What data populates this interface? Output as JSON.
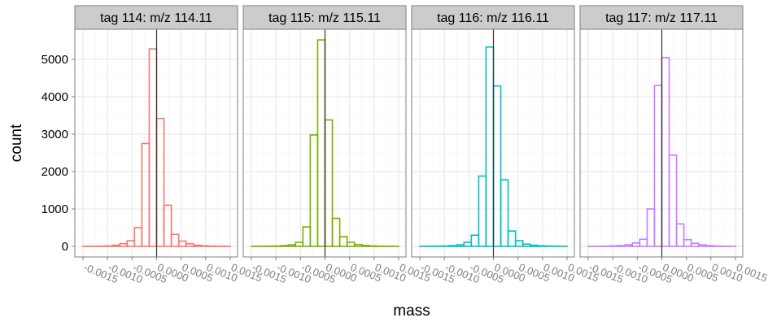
{
  "chart_data": {
    "type": "histogram",
    "layout": "facet-wrap, 4 panels in a row, shared y axis",
    "xlabel": "mass",
    "ylabel": "count",
    "xlim": [
      -0.0015,
      0.0015
    ],
    "ylim": [
      0,
      5500
    ],
    "x_ticks": [
      "-0.0015",
      "-0.0010",
      "-0.0005",
      "0.0000",
      "0.0005",
      "0.0010",
      "0.0015"
    ],
    "y_ticks": [
      "0",
      "1000",
      "2000",
      "3000",
      "4000",
      "5000"
    ],
    "grid": true,
    "legend": "none",
    "reference_line_x": 0,
    "bin_edges": [
      -0.0015,
      -0.00135,
      -0.0012,
      -0.00105,
      -0.0009,
      -0.00075,
      -0.0006,
      -0.00045,
      -0.0003,
      -0.00015,
      0.0,
      0.00015,
      0.0003,
      0.00045,
      0.0006,
      0.00075,
      0.0009,
      0.00105,
      0.0012,
      0.00135,
      0.0015
    ],
    "panels": [
      {
        "strip": "tag 114: m/z 114.11",
        "color": "#f8766d",
        "counts": [
          2,
          3,
          5,
          10,
          30,
          70,
          150,
          500,
          2750,
          5280,
          3420,
          1100,
          320,
          140,
          70,
          30,
          15,
          8,
          5,
          3
        ]
      },
      {
        "strip": "tag 115: m/z 115.11",
        "color": "#7cae00",
        "counts": [
          2,
          3,
          5,
          10,
          20,
          40,
          110,
          520,
          2980,
          5520,
          3380,
          750,
          260,
          110,
          50,
          25,
          12,
          6,
          4,
          2
        ]
      },
      {
        "strip": "tag 116: m/z 116.11",
        "color": "#00bfc4",
        "counts": [
          2,
          3,
          5,
          10,
          20,
          40,
          110,
          300,
          1880,
          5330,
          4290,
          1780,
          410,
          150,
          60,
          30,
          15,
          8,
          4,
          2
        ]
      },
      {
        "strip": "tag 117: m/z 117.11",
        "color": "#c77cff",
        "counts": [
          2,
          3,
          5,
          10,
          20,
          40,
          90,
          190,
          1000,
          4300,
          5050,
          2440,
          600,
          180,
          80,
          40,
          20,
          10,
          5,
          2
        ]
      }
    ]
  }
}
